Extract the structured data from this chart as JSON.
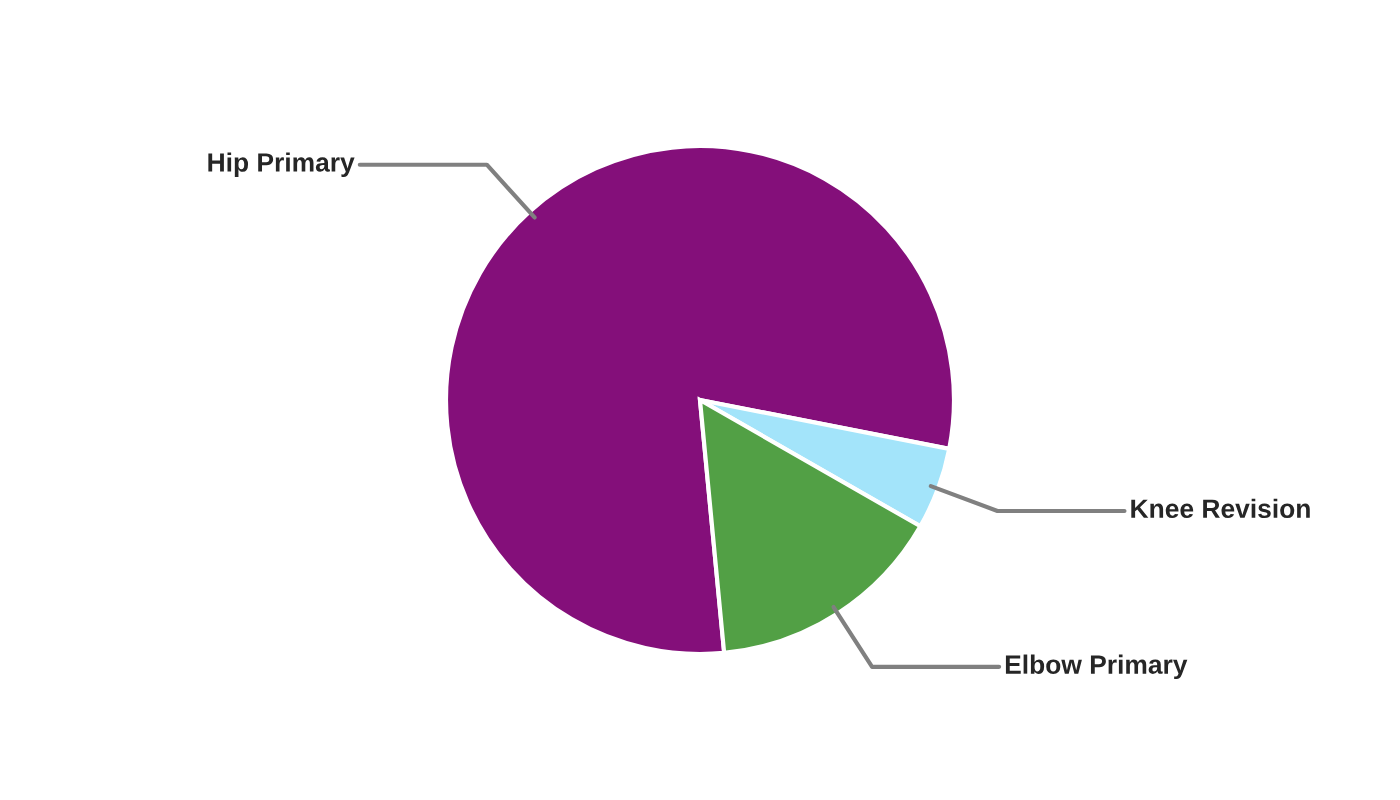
{
  "chart_data": {
    "type": "pie",
    "categories": [
      "Hip Primary",
      "Knee Revision",
      "Elbow Primary"
    ],
    "values": [
      79.6,
      5.2,
      15.2
    ],
    "colors": [
      "#840f7a",
      "#a3e4fa",
      "#52a045"
    ]
  }
}
